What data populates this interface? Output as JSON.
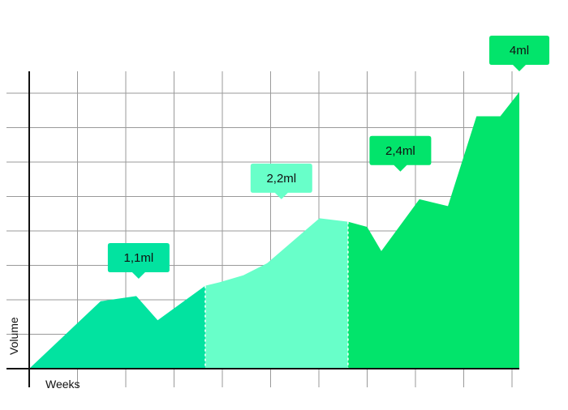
{
  "chart_data": {
    "type": "area",
    "xlabel": "Weeks",
    "ylabel": "Volume",
    "x": [
      0,
      1.5,
      2.25,
      2.7,
      3.7,
      4.0,
      4.5,
      5.0,
      6.1,
      6.7,
      7.1,
      7.4,
      8.2,
      8.8,
      9.4,
      9.9,
      10.3
    ],
    "values": [
      0,
      1.95,
      2.1,
      1.4,
      2.4,
      2.5,
      2.7,
      3.05,
      4.35,
      4.25,
      4.1,
      3.4,
      4.9,
      4.7,
      7.3,
      7.3,
      8.0
    ],
    "xlim": [
      0,
      10.3
    ],
    "ylim": [
      0,
      8.6
    ],
    "grid": true,
    "segments": [
      {
        "x_start": 0,
        "x_end": 3.7,
        "color": "#02e3a0",
        "label": "1,1ml",
        "label_x": 2.3,
        "label_y": 2.6
      },
      {
        "x_start": 3.7,
        "x_end": 6.7,
        "color": "#68ffc9",
        "label": "2,2ml",
        "label_x": 5.3,
        "label_y": 4.9
      },
      {
        "x_start": 6.7,
        "x_end": 10.3,
        "color": "#02e46b",
        "label": "2,4ml",
        "label_x": 7.8,
        "label_y": 5.7
      },
      {
        "x_start": 10.3,
        "x_end": 10.3,
        "color": "#02e46b",
        "label": "4ml",
        "label_x": 10.3,
        "label_y": 8.6
      }
    ]
  }
}
